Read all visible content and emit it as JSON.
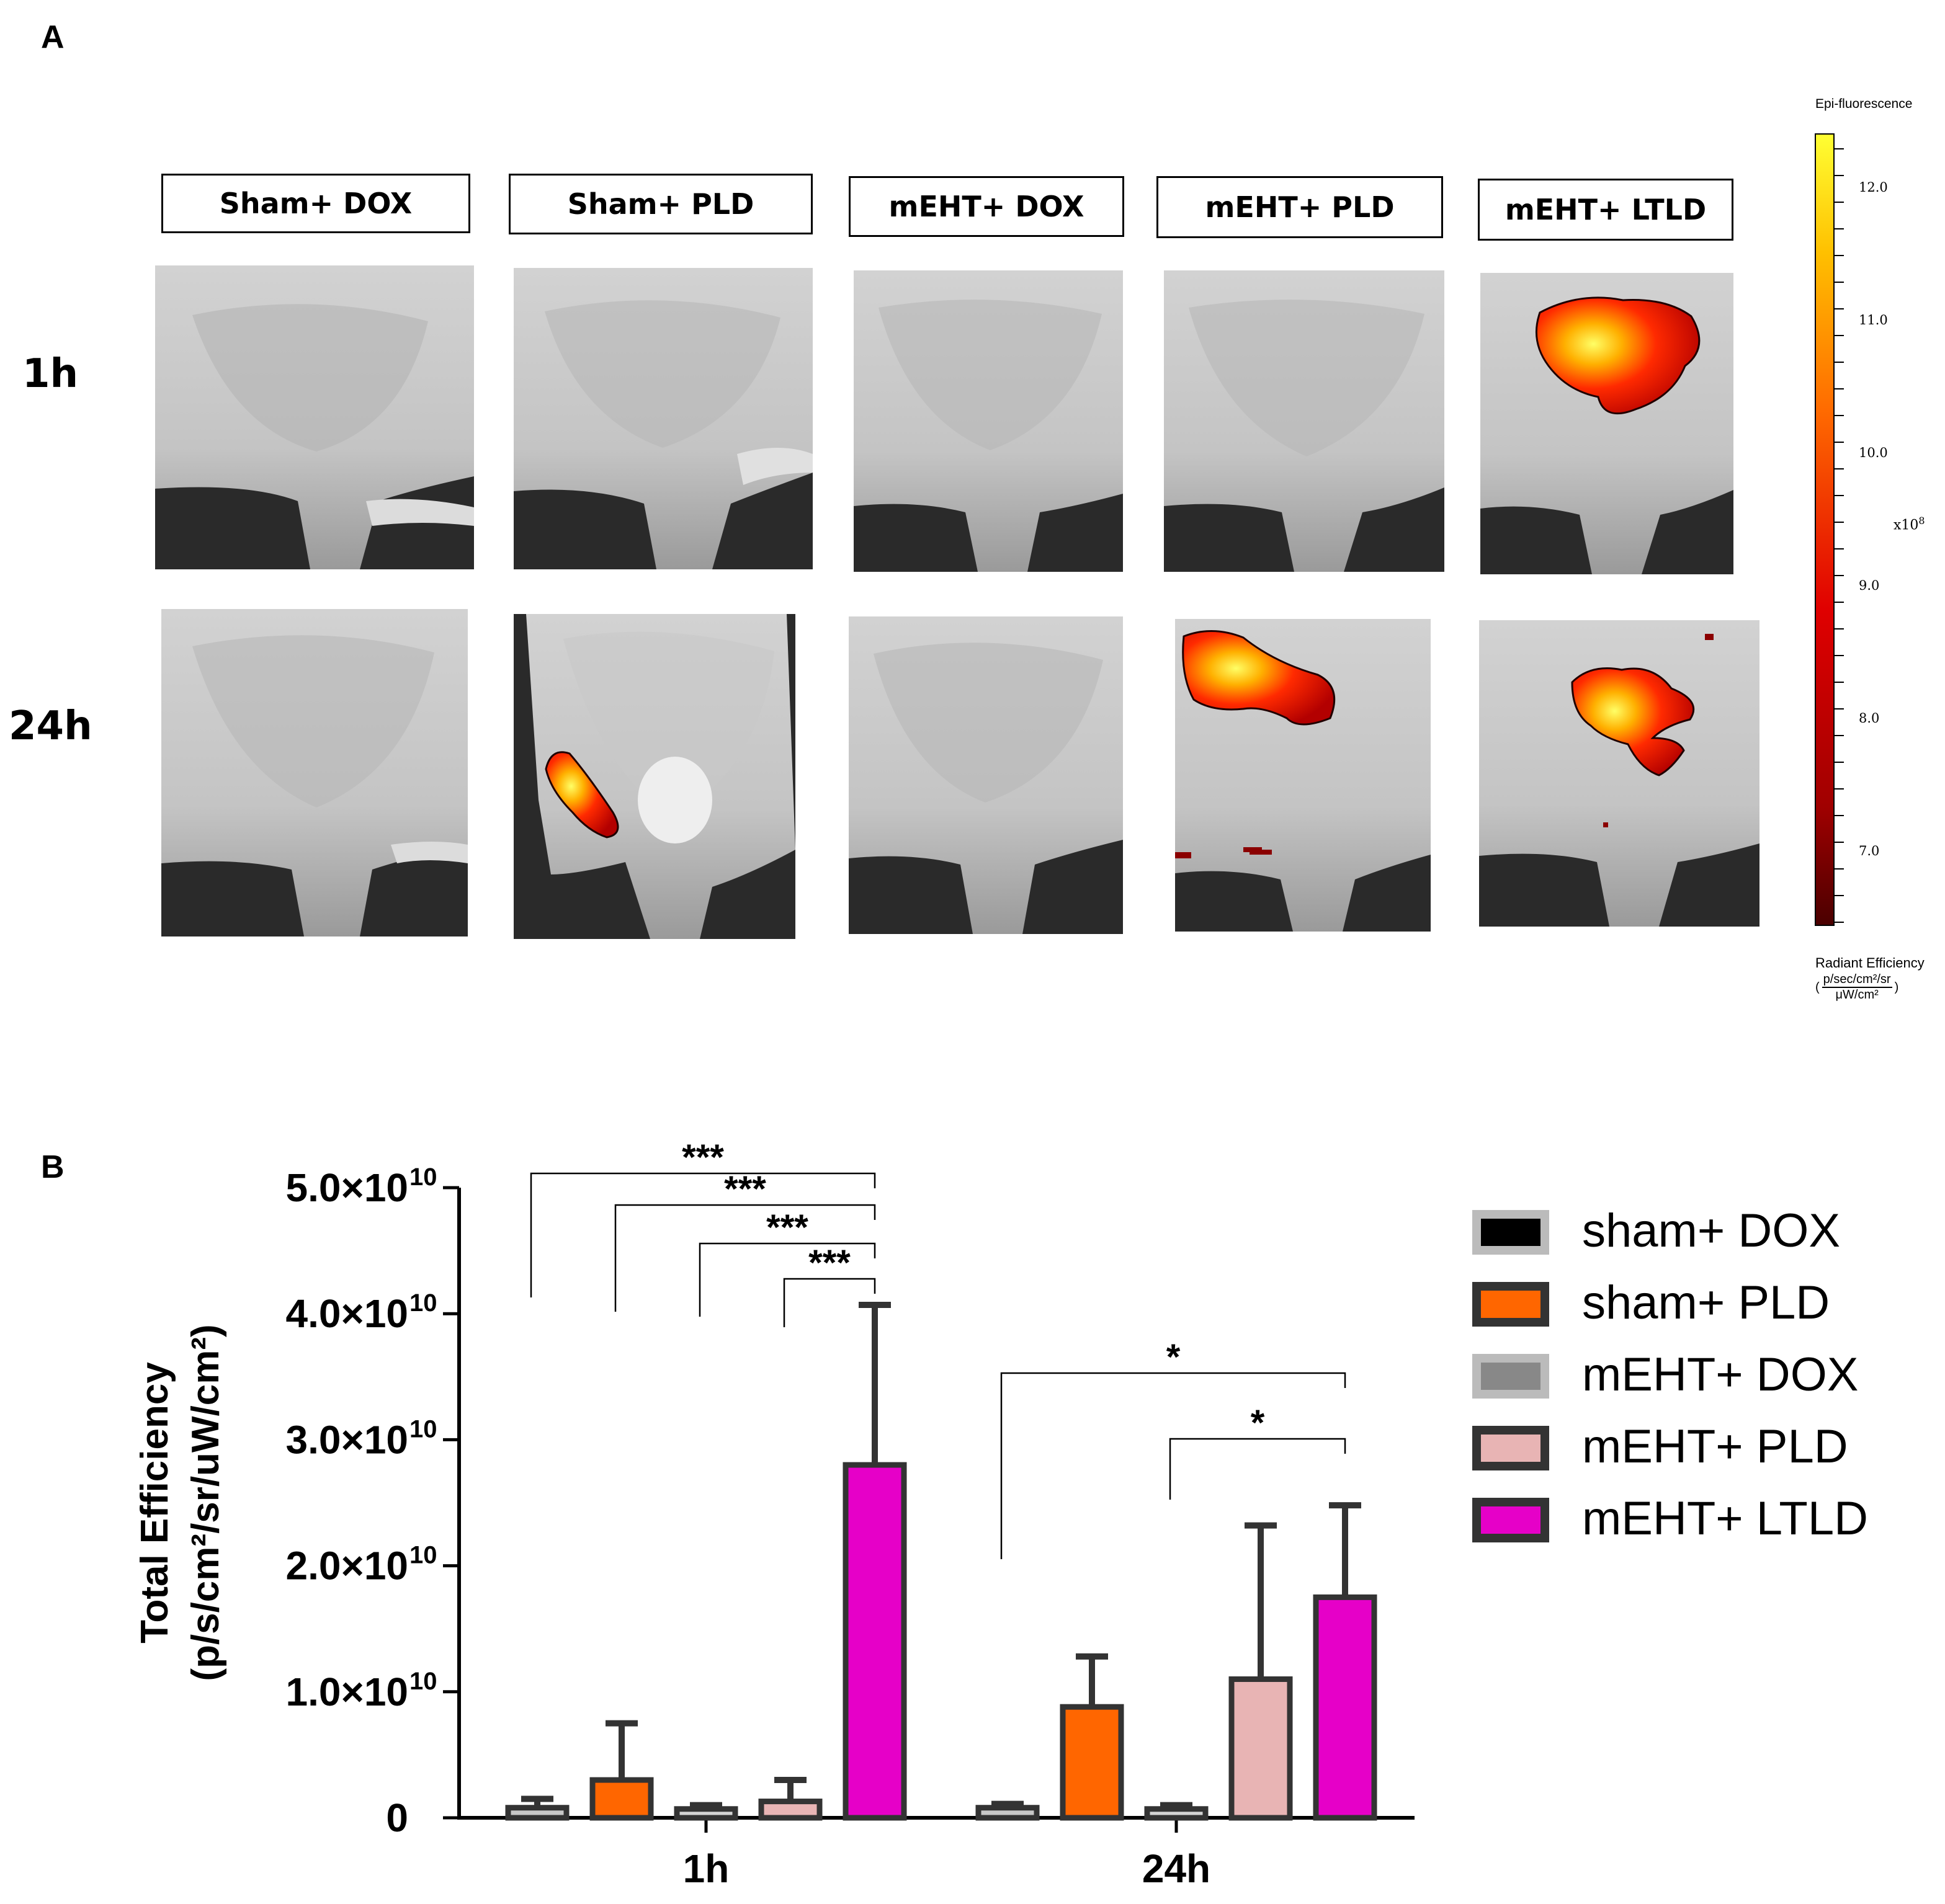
{
  "panel_a": {
    "letter": "A",
    "groups": [
      "Sham+ DOX",
      "Sham+ PLD",
      "mEHT+ DOX",
      "mEHT+ PLD",
      "mEHT+ LTLD"
    ],
    "rows": [
      "1h",
      "24h"
    ],
    "colorbar": {
      "title": "Epi-fluorescence",
      "ticks": [
        "12.0",
        "11.0",
        "10.0",
        "9.0",
        "8.0",
        "7.0"
      ],
      "multiplier": "x10",
      "multiplier_exp": "8",
      "unit_title": "Radiant Efficiency",
      "unit_numerator": "p/sec/cm²/sr",
      "unit_denominator": "μW/cm²"
    },
    "signals": {
      "Sham+ DOX": {
        "1h": false,
        "24h": false
      },
      "Sham+ PLD": {
        "1h": false,
        "24h": true
      },
      "mEHT+ DOX": {
        "1h": false,
        "24h": false
      },
      "mEHT+ PLD": {
        "1h": false,
        "24h": true
      },
      "mEHT+ LTLD": {
        "1h": true,
        "24h": true
      }
    }
  },
  "chart_data": {
    "type": "bar",
    "panel_letter": "B",
    "categories": [
      "1h",
      "24h"
    ],
    "series": [
      {
        "name": "sham+ DOX",
        "fill": "#c8c8c8",
        "values": [
          0.08,
          0.08
        ],
        "errors": [
          0.07,
          0.03
        ]
      },
      {
        "name": "sham+ PLD",
        "fill": "#ff6600",
        "values": [
          0.3,
          0.88
        ],
        "errors": [
          0.45,
          0.4
        ]
      },
      {
        "name": "mEHT+ DOX",
        "fill": "#d4d4d4",
        "values": [
          0.07,
          0.07
        ],
        "errors": [
          0.03,
          0.03
        ]
      },
      {
        "name": "mEHT+ PLD",
        "fill": "#e8b4b4",
        "values": [
          0.13,
          1.1
        ],
        "errors": [
          0.17,
          1.22
        ]
      },
      {
        "name": "mEHT+ LTLD",
        "fill": "#e600c8",
        "values": [
          2.8,
          1.75
        ],
        "errors": [
          1.27,
          0.73
        ]
      }
    ],
    "legend_swatches": [
      "#000000",
      "#ff6600",
      "#888888",
      "#e8b4b4",
      "#e600c8"
    ],
    "ylabel_line1": "Total Efficiency",
    "ylabel_line2": "(p/s/cm²/sr/uW/cm²)",
    "ylim": [
      0,
      5.0
    ],
    "yticks": [
      {
        "value": 0,
        "mantissa": "0",
        "exp": ""
      },
      {
        "value": 1.0,
        "mantissa": "1.0×10",
        "exp": "10"
      },
      {
        "value": 2.0,
        "mantissa": "2.0×10",
        "exp": "10"
      },
      {
        "value": 3.0,
        "mantissa": "3.0×10",
        "exp": "10"
      },
      {
        "value": 4.0,
        "mantissa": "4.0×10",
        "exp": "10"
      },
      {
        "value": 5.0,
        "mantissa": "5.0×10",
        "exp": "10"
      }
    ],
    "significance": [
      {
        "category": 0,
        "from_series": 0,
        "to_series": 4,
        "label": "***"
      },
      {
        "category": 0,
        "from_series": 1,
        "to_series": 4,
        "label": "***"
      },
      {
        "category": 0,
        "from_series": 2,
        "to_series": 4,
        "label": "***"
      },
      {
        "category": 0,
        "from_series": 3,
        "to_series": 4,
        "label": "***"
      },
      {
        "category": 1,
        "from_series": 0,
        "to_series": 4,
        "label": "*"
      },
      {
        "category": 1,
        "from_series": 2,
        "to_series": 4,
        "label": "*"
      }
    ]
  }
}
